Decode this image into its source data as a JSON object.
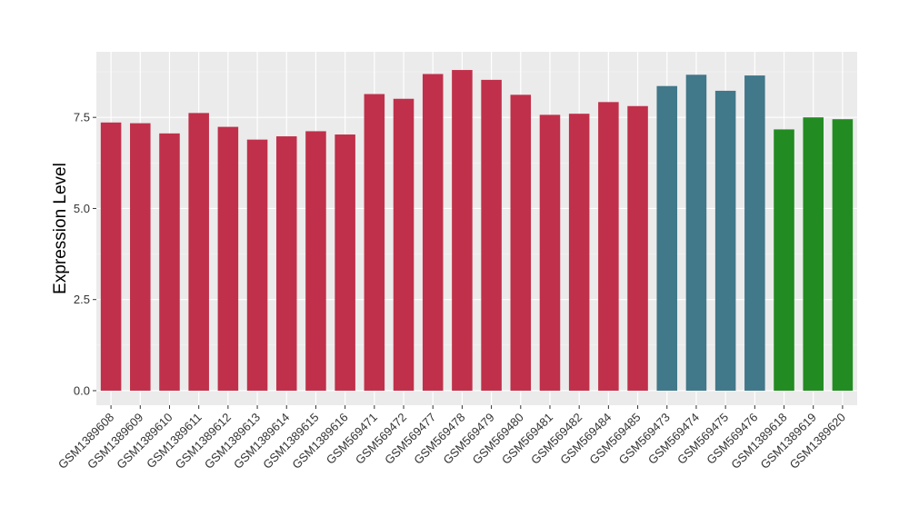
{
  "chart_data": {
    "type": "bar",
    "ylabel": "Expression Level",
    "xlabel": "",
    "ylim": [
      -0.4,
      9.3
    ],
    "yticks": [
      0.0,
      2.5,
      5.0,
      7.5
    ],
    "ytick_labels": [
      "0.0",
      "2.5",
      "5.0",
      "7.5"
    ],
    "grid": true,
    "legend": "none",
    "group_colors": {
      "red": "#c0304a",
      "teal": "#41788a",
      "green": "#228b22"
    },
    "categories": [
      "GSM1389608",
      "GSM1389609",
      "GSM1389610",
      "GSM1389611",
      "GSM1389612",
      "GSM1389613",
      "GSM1389614",
      "GSM1389615",
      "GSM1389616",
      "GSM569471",
      "GSM569472",
      "GSM569477",
      "GSM569478",
      "GSM569479",
      "GSM569480",
      "GSM569481",
      "GSM569482",
      "GSM569484",
      "GSM569485",
      "GSM569473",
      "GSM569474",
      "GSM569475",
      "GSM569476",
      "GSM1389618",
      "GSM1389619",
      "GSM1389620"
    ],
    "values": [
      7.36,
      7.34,
      7.06,
      7.62,
      7.24,
      6.89,
      6.98,
      7.12,
      7.03,
      8.14,
      8.01,
      8.69,
      8.8,
      8.53,
      8.12,
      7.57,
      7.6,
      7.92,
      7.81,
      8.36,
      8.67,
      8.23,
      8.65,
      7.17,
      7.5,
      7.45
    ],
    "bar_groups": [
      "red",
      "red",
      "red",
      "red",
      "red",
      "red",
      "red",
      "red",
      "red",
      "red",
      "red",
      "red",
      "red",
      "red",
      "red",
      "red",
      "red",
      "red",
      "red",
      "teal",
      "teal",
      "teal",
      "teal",
      "green",
      "green",
      "green"
    ]
  }
}
